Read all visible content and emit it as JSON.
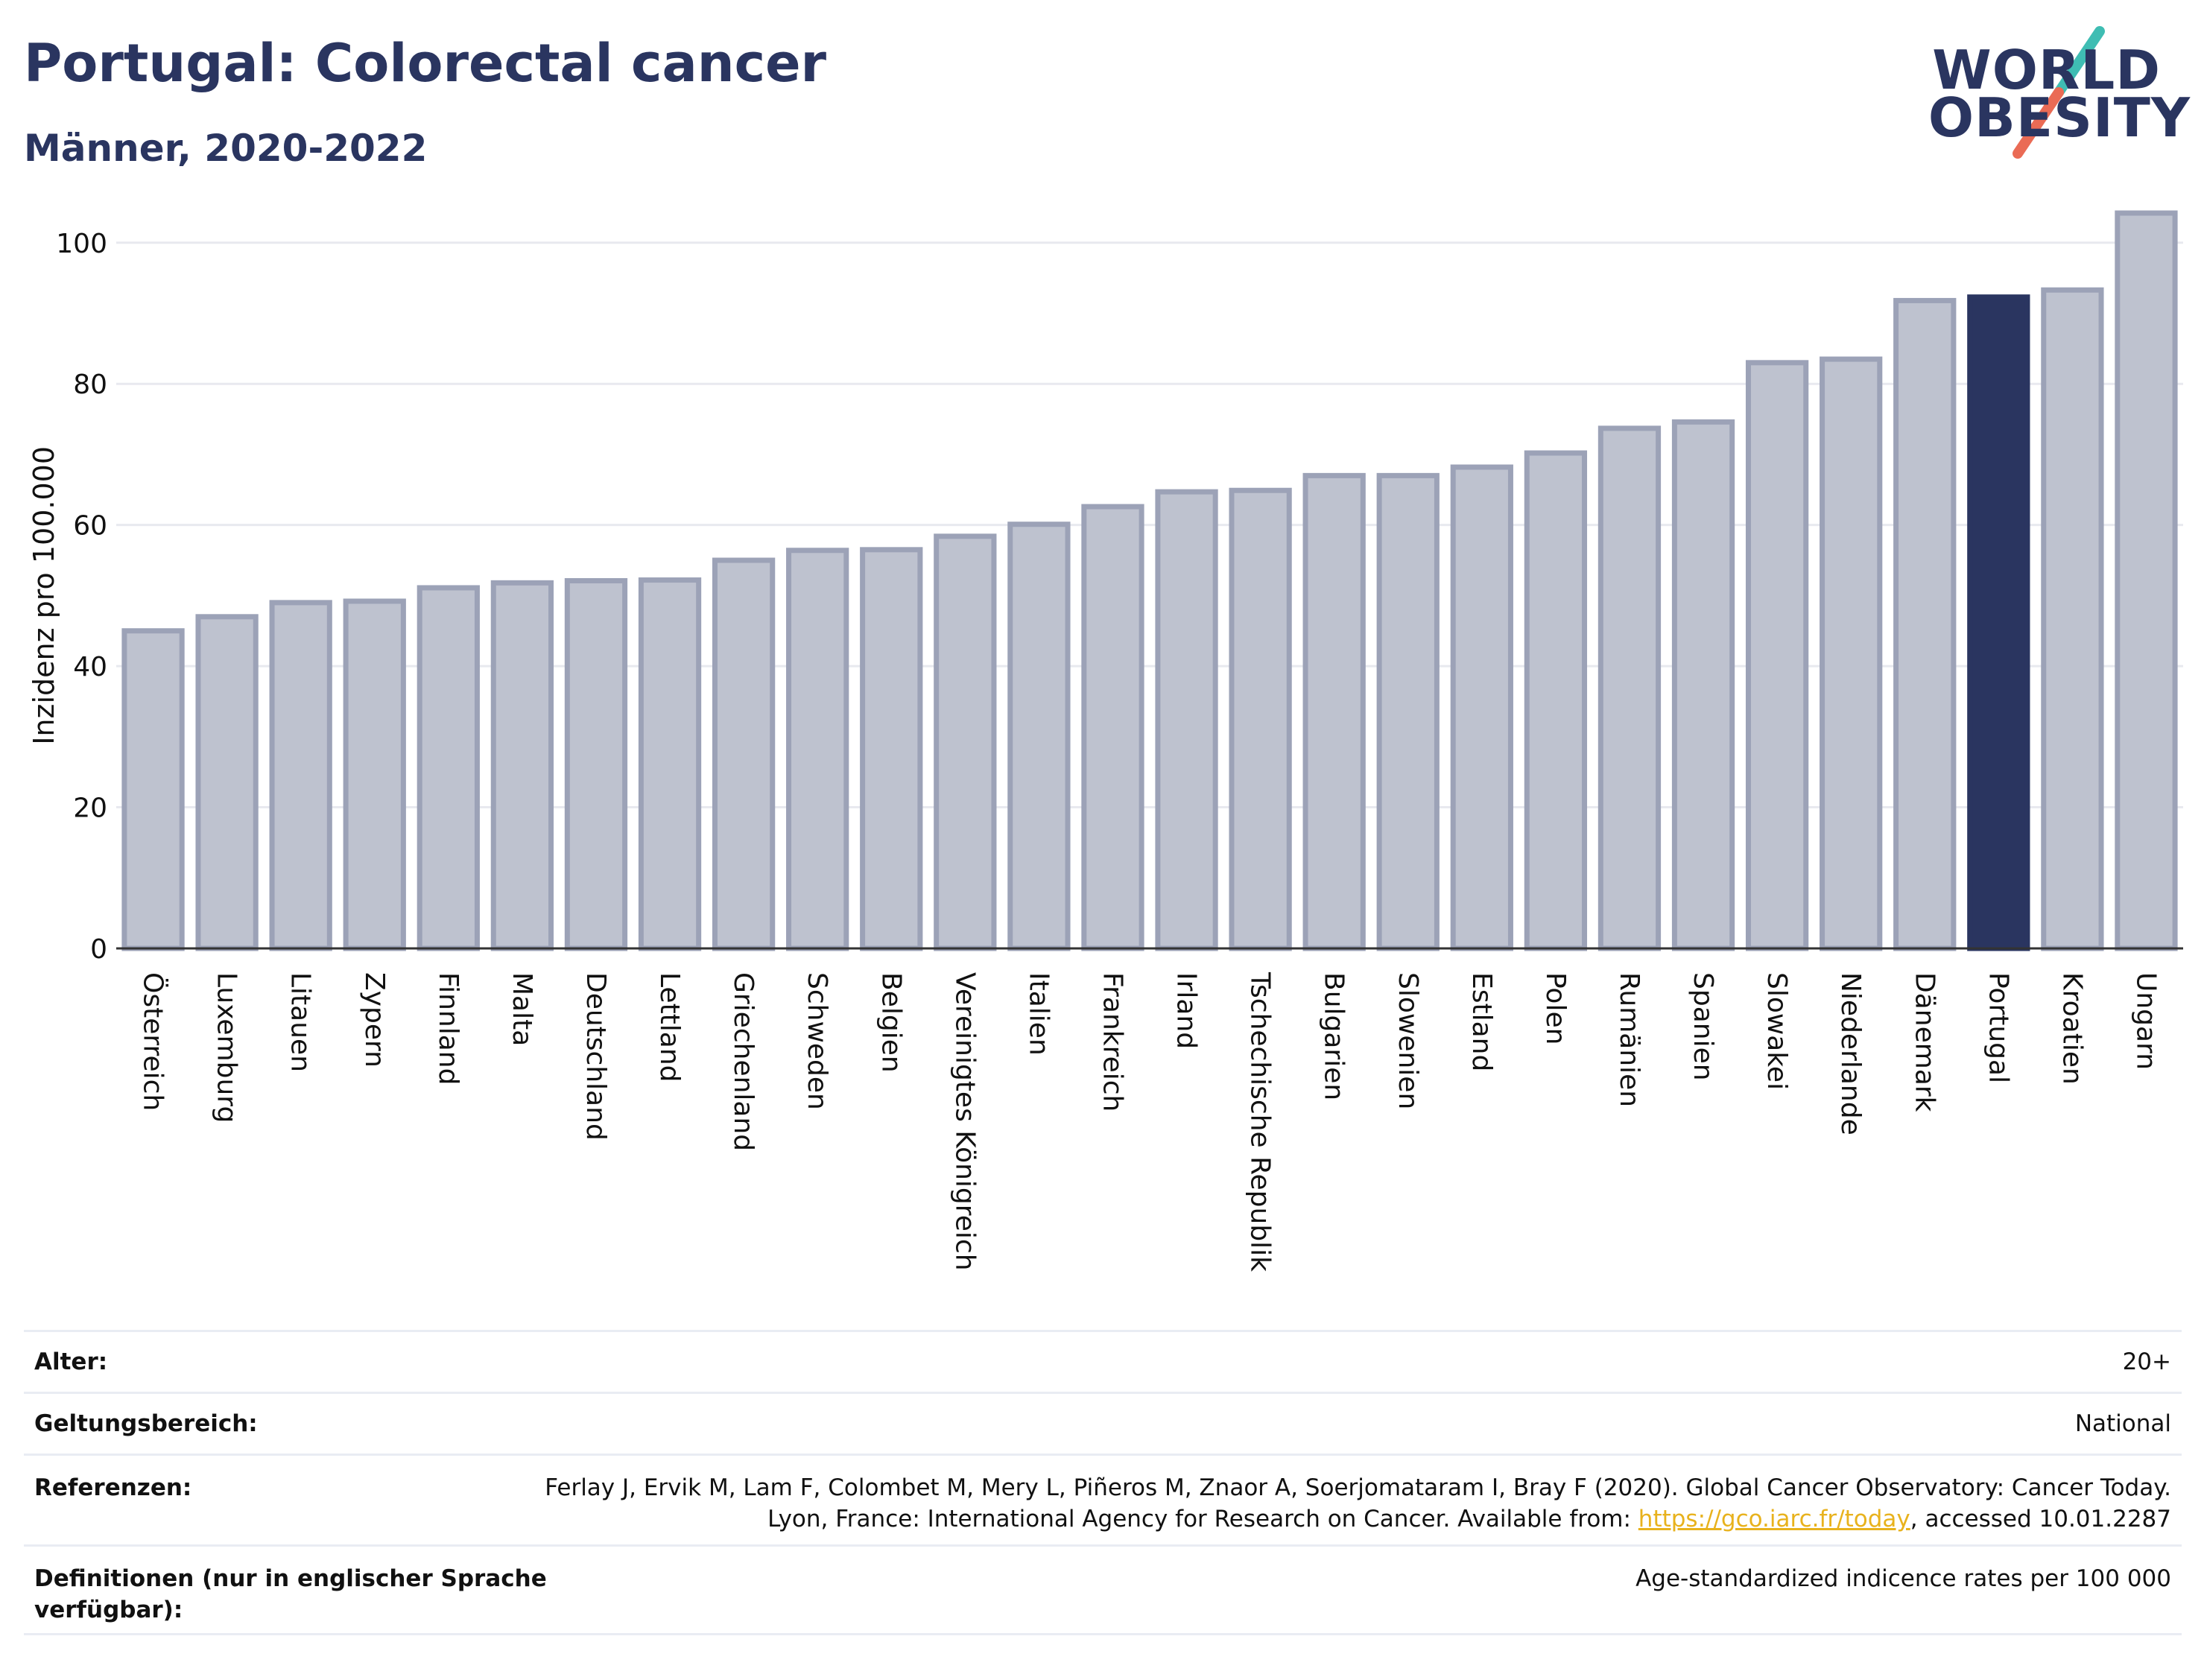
{
  "header": {
    "title": "Portugal: Colorectal cancer",
    "subtitle": "Männer, 2020-2022"
  },
  "logo": {
    "line1": "WORLD",
    "line2": "OBESITY",
    "colors": {
      "text": "#2a3560",
      "slash_top": "#3fbdb3",
      "slash_bottom": "#ea6b55"
    }
  },
  "chart_data": {
    "type": "bar",
    "ylabel": "Inzidenz pro 100.000",
    "ylim": [
      0,
      108
    ],
    "yticks": [
      0,
      20,
      40,
      60,
      80,
      100
    ],
    "grid": true,
    "highlight": "Portugal",
    "colors": {
      "bar": "#bec2cf",
      "bar_edge": "#9ca2b7",
      "highlight": "#2a3560",
      "grid": "#e8e9ef",
      "axis": "#333333"
    },
    "categories": [
      "Österreich",
      "Luxemburg",
      "Litauen",
      "Zypern",
      "Finnland",
      "Malta",
      "Deutschland",
      "Lettland",
      "Griechenland",
      "Schweden",
      "Belgien",
      "Vereinigtes Königreich",
      "Italien",
      "Frankreich",
      "Irland",
      "Tschechische Republik",
      "Bulgarien",
      "Slowenien",
      "Estland",
      "Polen",
      "Rumänien",
      "Spanien",
      "Slowakei",
      "Niederlande",
      "Dänemark",
      "Portugal",
      "Kroatien",
      "Ungarn"
    ],
    "values": [
      45.0,
      47.0,
      49.0,
      49.2,
      51.1,
      51.8,
      52.1,
      52.2,
      55.0,
      56.4,
      56.5,
      58.4,
      60.1,
      62.6,
      64.7,
      64.9,
      67.0,
      67.0,
      68.2,
      70.2,
      73.7,
      74.6,
      83.0,
      83.5,
      91.8,
      92.3,
      93.3,
      104.2
    ]
  },
  "footer": {
    "rows": [
      {
        "label": "Alter:",
        "value": "20+"
      },
      {
        "label": "Geltungsbereich:",
        "value": "National"
      },
      {
        "label": "Referenzen:",
        "value_part1": "Ferlay J, Ervik M, Lam F, Colombet M, Mery L, Piñeros M, Znaor A, Soerjomataram I, Bray F (2020). Global Cancer Observatory: Cancer Today. Lyon, France: International Agency for Research on Cancer. Available from: ",
        "link": "https://gco.iarc.fr/today",
        "value_part2": ", accessed 10.01.2287"
      },
      {
        "label": "Definitionen (nur in englischer Sprache verfügbar):",
        "value": "Age-standardized indicence rates per 100 000"
      }
    ]
  }
}
